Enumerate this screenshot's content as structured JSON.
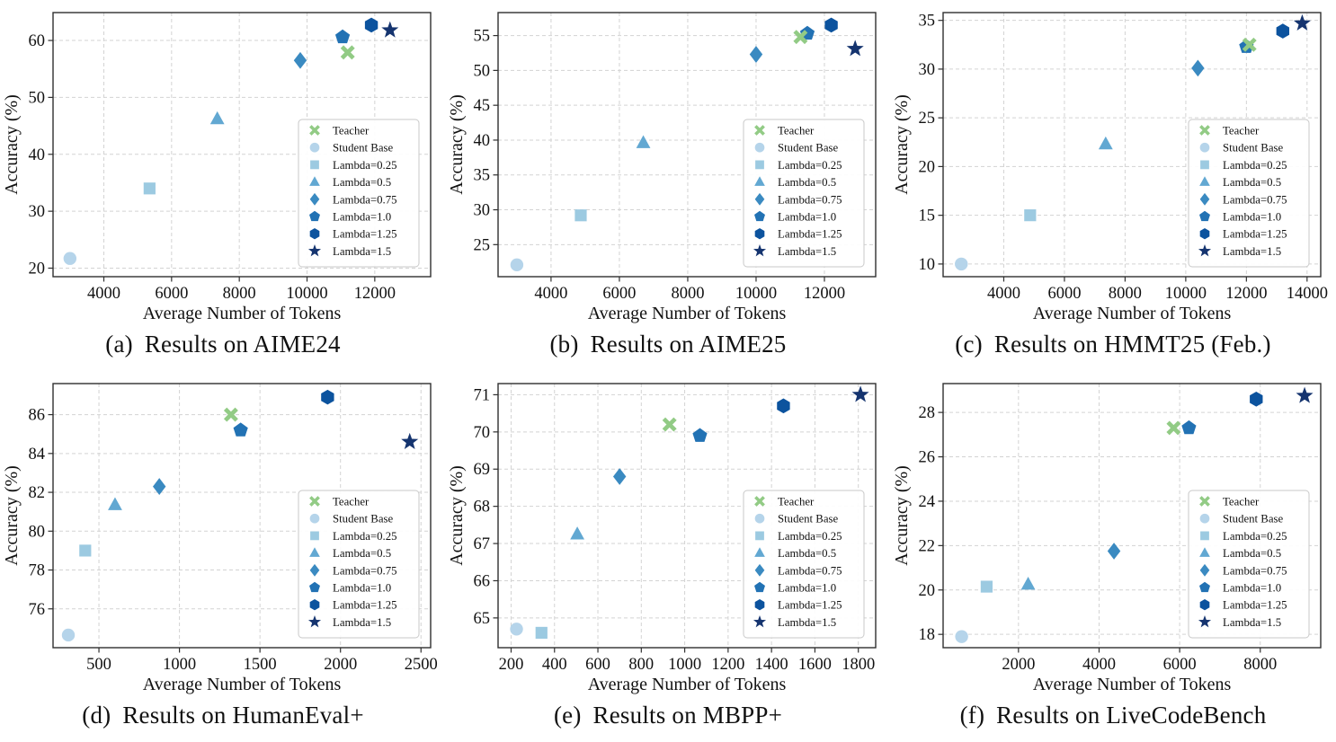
{
  "figure": {
    "background": "#ffffff",
    "grid_color": "#d3d3d3",
    "spine_color": "#2f2f2f",
    "legend_border": "#c9c9c9"
  },
  "legend": {
    "items": [
      {
        "label": "Teacher",
        "marker": "x",
        "color": "#92cb85"
      },
      {
        "label": "Student Base",
        "marker": "circle",
        "color": "#b5d4ea"
      },
      {
        "label": "Lambda=0.25",
        "marker": "square",
        "color": "#9ccae1"
      },
      {
        "label": "Lambda=0.5",
        "marker": "triangle",
        "color": "#62a8d2"
      },
      {
        "label": "Lambda=0.75",
        "marker": "diamond",
        "color": "#3a8ac1"
      },
      {
        "label": "Lambda=1.0",
        "marker": "pentagon",
        "color": "#2272b4"
      },
      {
        "label": "Lambda=1.25",
        "marker": "hexagon",
        "color": "#0c539e"
      },
      {
        "label": "Lambda=1.5",
        "marker": "star",
        "color": "#15346f"
      }
    ]
  },
  "chart_data": [
    {
      "type": "scatter",
      "caption_tag": "(a)",
      "caption_text": "Results on AIME24",
      "xlabel": "Average Number of Tokens",
      "ylabel": "Accuracy (%)",
      "xlim": [
        2500,
        13650
      ],
      "ylim": [
        18.5,
        64.9
      ],
      "xticks": [
        4000,
        6000,
        8000,
        10000,
        12000
      ],
      "yticks": [
        20,
        30,
        40,
        50,
        60
      ],
      "series": [
        {
          "name": "Student Base",
          "x": 3000,
          "y": 21.7
        },
        {
          "name": "Lambda=0.25",
          "x": 5350,
          "y": 34.0
        },
        {
          "name": "Lambda=0.5",
          "x": 7350,
          "y": 46.2
        },
        {
          "name": "Lambda=0.75",
          "x": 9800,
          "y": 56.5
        },
        {
          "name": "Lambda=1.0",
          "x": 11050,
          "y": 60.6
        },
        {
          "name": "Lambda=1.25",
          "x": 11900,
          "y": 62.7
        },
        {
          "name": "Lambda=1.5",
          "x": 12450,
          "y": 61.8
        },
        {
          "name": "Teacher",
          "x": 11200,
          "y": 57.9
        }
      ]
    },
    {
      "type": "scatter",
      "caption_tag": "(b)",
      "caption_text": "Results on AIME25",
      "xlabel": "Average Number of Tokens",
      "ylabel": "Accuracy (%)",
      "xlim": [
        2450,
        13500
      ],
      "ylim": [
        20.4,
        58.3
      ],
      "xticks": [
        4000,
        6000,
        8000,
        10000,
        12000
      ],
      "yticks": [
        25,
        30,
        35,
        40,
        45,
        50,
        55
      ],
      "series": [
        {
          "name": "Student Base",
          "x": 3000,
          "y": 22.1
        },
        {
          "name": "Lambda=0.25",
          "x": 4870,
          "y": 29.2
        },
        {
          "name": "Lambda=0.5",
          "x": 6700,
          "y": 39.6
        },
        {
          "name": "Lambda=0.75",
          "x": 10000,
          "y": 52.3
        },
        {
          "name": "Lambda=1.0",
          "x": 11500,
          "y": 55.3
        },
        {
          "name": "Lambda=1.25",
          "x": 12200,
          "y": 56.5
        },
        {
          "name": "Lambda=1.5",
          "x": 12900,
          "y": 53.1
        },
        {
          "name": "Teacher",
          "x": 11300,
          "y": 54.8
        }
      ]
    },
    {
      "type": "scatter",
      "caption_tag": "(c)",
      "caption_text": "Results on HMMT25 (Feb.)",
      "xlabel": "Average Number of Tokens",
      "ylabel": "Accuracy (%)",
      "xlim": [
        2000,
        14450
      ],
      "ylim": [
        8.7,
        35.8
      ],
      "xticks": [
        4000,
        6000,
        8000,
        10000,
        12000,
        14000
      ],
      "yticks": [
        10,
        15,
        20,
        25,
        30,
        35
      ],
      "series": [
        {
          "name": "Student Base",
          "x": 2600,
          "y": 10.0
        },
        {
          "name": "Lambda=0.25",
          "x": 4870,
          "y": 15.0
        },
        {
          "name": "Lambda=0.5",
          "x": 7360,
          "y": 22.3
        },
        {
          "name": "Lambda=0.75",
          "x": 10400,
          "y": 30.1
        },
        {
          "name": "Lambda=1.0",
          "x": 12000,
          "y": 32.3
        },
        {
          "name": "Lambda=1.25",
          "x": 13200,
          "y": 33.9
        },
        {
          "name": "Lambda=1.5",
          "x": 13840,
          "y": 34.7
        },
        {
          "name": "Teacher",
          "x": 12100,
          "y": 32.5
        }
      ]
    },
    {
      "type": "scatter",
      "caption_tag": "(d)",
      "caption_text": "Results on HumanEval+",
      "xlabel": "Average Number of Tokens",
      "ylabel": "Accuracy (%)",
      "xlim": [
        215,
        2560
      ],
      "ylim": [
        74.0,
        87.6
      ],
      "xticks": [
        500,
        1000,
        1500,
        2000,
        2500
      ],
      "yticks": [
        76,
        78,
        80,
        82,
        84,
        86
      ],
      "series": [
        {
          "name": "Student Base",
          "x": 310,
          "y": 74.65
        },
        {
          "name": "Lambda=0.25",
          "x": 415,
          "y": 79.0
        },
        {
          "name": "Lambda=0.5",
          "x": 600,
          "y": 81.35
        },
        {
          "name": "Lambda=0.75",
          "x": 875,
          "y": 82.3
        },
        {
          "name": "Lambda=1.0",
          "x": 1380,
          "y": 85.2
        },
        {
          "name": "Lambda=1.25",
          "x": 1920,
          "y": 86.9
        },
        {
          "name": "Lambda=1.5",
          "x": 2430,
          "y": 84.6
        },
        {
          "name": "Teacher",
          "x": 1320,
          "y": 86.0
        }
      ]
    },
    {
      "type": "scatter",
      "caption_tag": "(e)",
      "caption_text": "Results on MBPP+",
      "xlabel": "Average Number of Tokens",
      "ylabel": "Accuracy (%)",
      "xlim": [
        140,
        1880
      ],
      "ylim": [
        64.2,
        71.3
      ],
      "xticks": [
        200,
        400,
        600,
        800,
        1000,
        1200,
        1400,
        1600,
        1800
      ],
      "yticks": [
        65,
        66,
        67,
        68,
        69,
        70,
        71
      ],
      "series": [
        {
          "name": "Student Base",
          "x": 225,
          "y": 64.7
        },
        {
          "name": "Lambda=0.25",
          "x": 340,
          "y": 64.6
        },
        {
          "name": "Lambda=0.5",
          "x": 505,
          "y": 67.25
        },
        {
          "name": "Lambda=0.75",
          "x": 700,
          "y": 68.8
        },
        {
          "name": "Lambda=1.0",
          "x": 1070,
          "y": 69.9
        },
        {
          "name": "Lambda=1.25",
          "x": 1455,
          "y": 70.7
        },
        {
          "name": "Lambda=1.5",
          "x": 1810,
          "y": 71.0
        },
        {
          "name": "Teacher",
          "x": 930,
          "y": 70.2
        }
      ]
    },
    {
      "type": "scatter",
      "caption_tag": "(f)",
      "caption_text": "Results on LiveCodeBench",
      "xlabel": "Average Number of Tokens",
      "ylabel": "Accuracy (%)",
      "xlim": [
        130,
        9500
      ],
      "ylim": [
        17.4,
        29.3
      ],
      "xticks": [
        2000,
        4000,
        6000,
        8000
      ],
      "yticks": [
        18,
        20,
        22,
        24,
        26,
        28
      ],
      "series": [
        {
          "name": "Student Base",
          "x": 590,
          "y": 17.9
        },
        {
          "name": "Lambda=0.25",
          "x": 1210,
          "y": 20.15
        },
        {
          "name": "Lambda=0.5",
          "x": 2240,
          "y": 20.25
        },
        {
          "name": "Lambda=0.75",
          "x": 4370,
          "y": 21.75
        },
        {
          "name": "Lambda=1.0",
          "x": 6230,
          "y": 27.3
        },
        {
          "name": "Lambda=1.25",
          "x": 7900,
          "y": 28.6
        },
        {
          "name": "Lambda=1.5",
          "x": 9100,
          "y": 28.75
        },
        {
          "name": "Teacher",
          "x": 5850,
          "y": 27.3
        }
      ]
    }
  ]
}
